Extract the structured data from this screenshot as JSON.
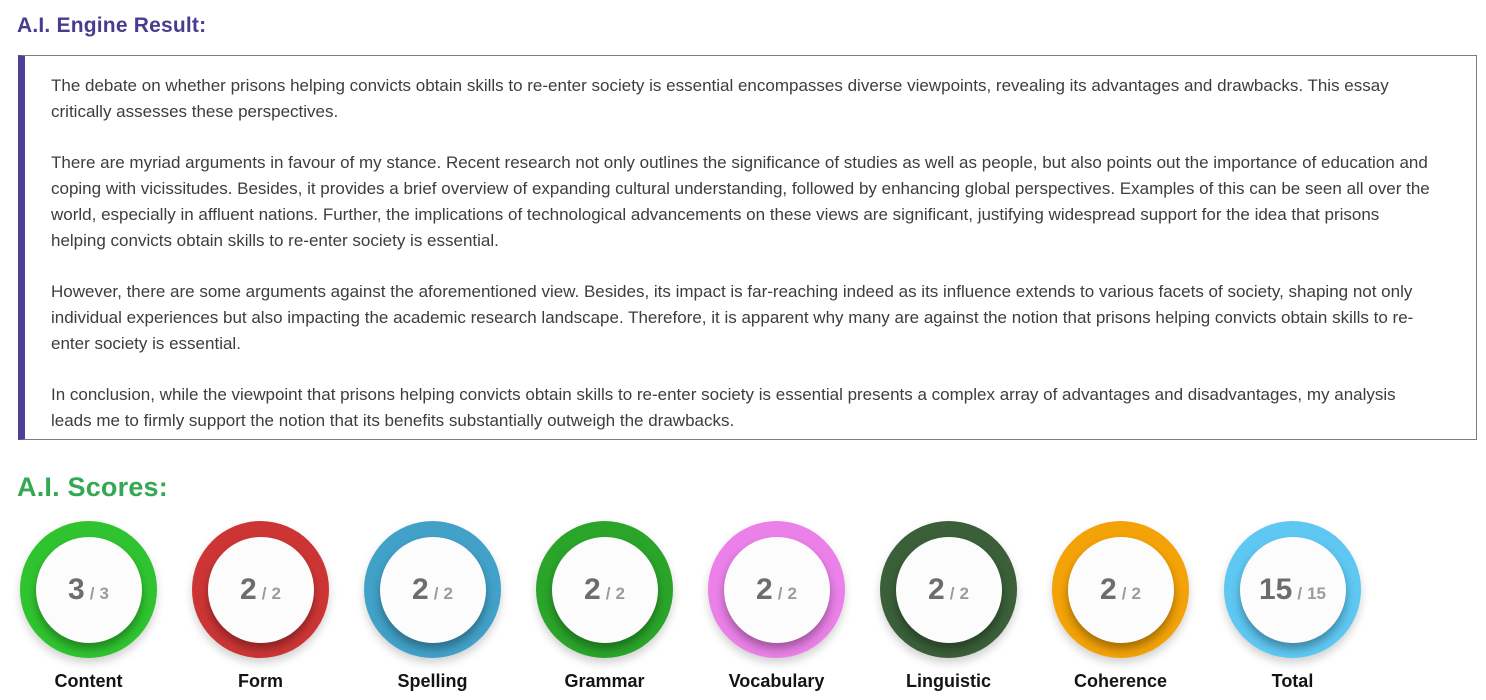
{
  "engine_result": {
    "heading": "A.I. Engine Result:",
    "paragraphs": [
      "The debate on whether prisons helping convicts obtain skills to re-enter society is essential encompasses diverse viewpoints, revealing its advantages and drawbacks. This essay critically assesses these perspectives.",
      "There are myriad arguments in favour of my stance. Recent research not only outlines the significance of studies as well as people, but also points out the importance of education and coping with vicissitudes. Besides, it provides a brief overview of expanding cultural understanding, followed by enhancing global perspectives. Examples of this can be seen all over the world, especially in affluent nations. Further, the implications of technological advancements on these views are significant, justifying widespread support for the idea that prisons helping convicts obtain skills to re-enter society is essential.",
      "However, there are some arguments against the aforementioned view. Besides, its impact is far-reaching indeed as its influence extends to various facets of society, shaping not only individual experiences but also impacting the academic research landscape. Therefore, it is apparent why many are against the notion that prisons helping convicts obtain skills to re-enter society is essential.",
      "In conclusion, while the viewpoint that prisons helping convicts obtain skills to re-enter society is essential presents a complex array of advantages and disadvantages, my analysis leads me to firmly support the notion that its benefits substantially outweigh the drawbacks."
    ]
  },
  "scores": {
    "heading": "A.I. Scores:",
    "separator": "/",
    "items": [
      {
        "label": "Content",
        "value": "3",
        "max": "3",
        "ring_color": "#2fc42f"
      },
      {
        "label": "Form",
        "value": "2",
        "max": "2",
        "ring_color": "#cd3535"
      },
      {
        "label": "Spelling",
        "value": "2",
        "max": "2",
        "ring_color": "#42a1c9"
      },
      {
        "label": "Grammar",
        "value": "2",
        "max": "2",
        "ring_color": "#2aa52a"
      },
      {
        "label": "Vocabulary",
        "value": "2",
        "max": "2",
        "ring_color": "#ea80e8"
      },
      {
        "label": "Linguistic",
        "value": "2",
        "max": "2",
        "ring_color": "#3a5f39"
      },
      {
        "label": "Coherence",
        "value": "2",
        "max": "2",
        "ring_color": "#f3a207"
      },
      {
        "label": "Total",
        "value": "15",
        "max": "15",
        "ring_color": "#5ec8f2"
      }
    ]
  },
  "colors": {
    "engine_heading": "#463d8f",
    "scores_heading": "#34a853",
    "box_accent": "#4c4196",
    "box_border": "#7d7d7d",
    "body_text": "#3d3d3d"
  }
}
